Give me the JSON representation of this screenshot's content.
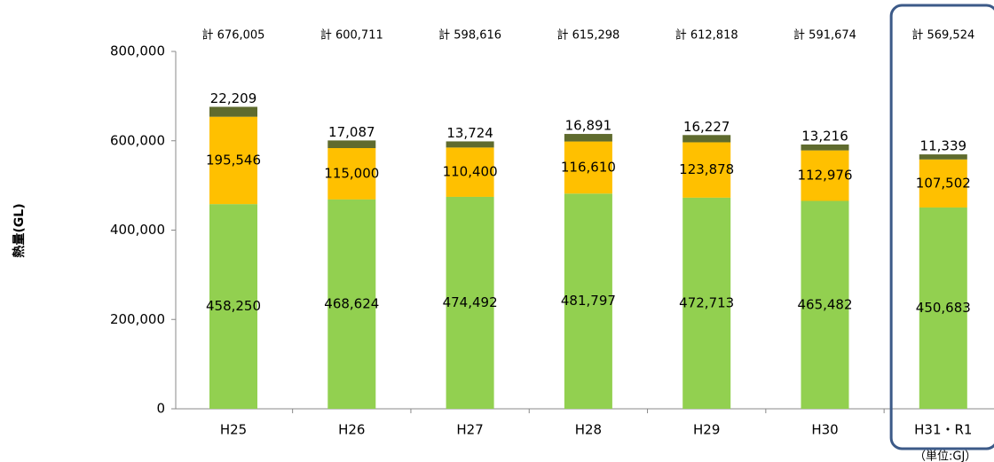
{
  "chart_data": {
    "type": "stacked_bar",
    "y_label": "熱量(GL)",
    "unit_note": "（単位:GJ）",
    "categories": [
      "H25",
      "H26",
      "H27",
      "H28",
      "H29",
      "H30",
      "H31・R1"
    ],
    "total_labels": [
      "計 676,005",
      "計 600,711",
      "計 598,616",
      "計 615,298",
      "計 612,818",
      "計 591,674",
      "計 569,524"
    ],
    "series": [
      {
        "color": "#92d050",
        "values": [
          458250,
          468624,
          474492,
          481797,
          472713,
          465482,
          450683
        ],
        "value_labels": [
          "458,250",
          "468,624",
          "474,492",
          "481,797",
          "472,713",
          "465,482",
          "450,683"
        ]
      },
      {
        "color": "#ffc000",
        "values": [
          195546,
          115000,
          110400,
          116610,
          123878,
          112976,
          107502
        ],
        "value_labels": [
          "195,546",
          "115,000",
          "110,400",
          "116,610",
          "123,878",
          "112,976",
          "107,502"
        ]
      },
      {
        "color": "#5f6b2e",
        "values": [
          22209,
          17087,
          13724,
          16891,
          16227,
          13216,
          11339
        ],
        "value_labels": [
          "22,209",
          "17,087",
          "13,724",
          "16,891",
          "16,227",
          "13,216",
          "11,339"
        ]
      }
    ],
    "ylim": [
      0,
      800000
    ],
    "yticks": [
      0,
      {
        "value": 200000,
        "label": "200,000"
      },
      {
        "value": 400000,
        "label": "400,000"
      },
      {
        "value": 600000,
        "label": "600,000"
      },
      {
        "value": 800000,
        "label": "800,000"
      }
    ],
    "grid": false,
    "highlight_category": 6
  }
}
